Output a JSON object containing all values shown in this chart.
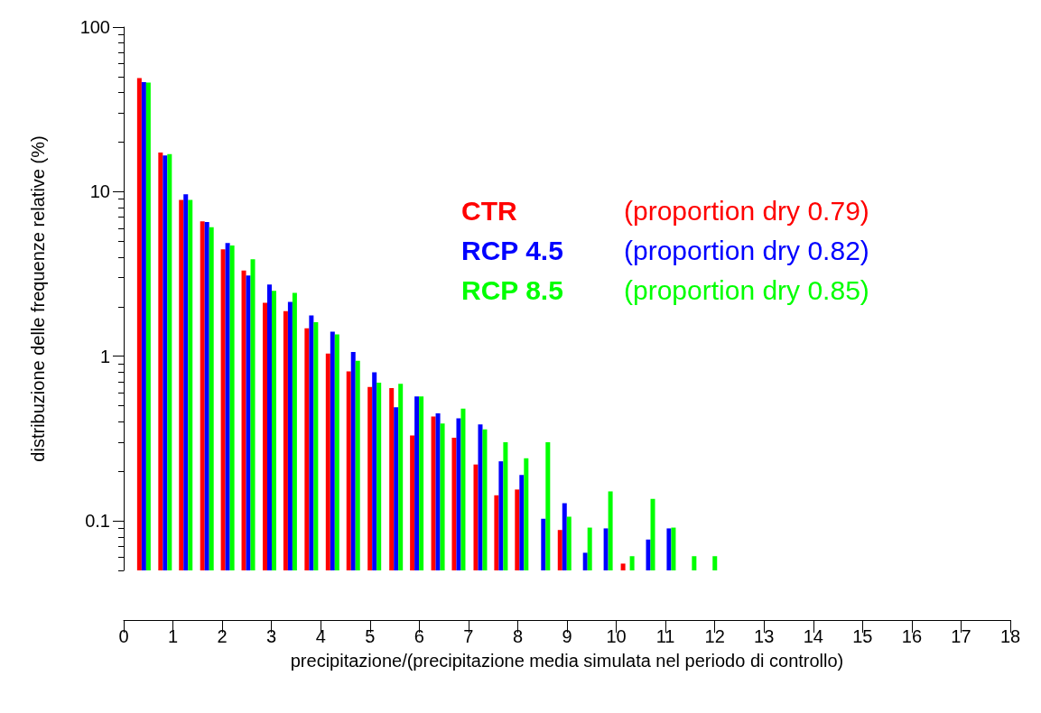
{
  "chart_data": {
    "type": "bar",
    "xlabel": "precipitazione/(precipitazione media simulata nel periodo di controllo)",
    "ylabel": "distribuzione delle frequenze relative (%)",
    "x": [
      0.41,
      0.84,
      1.26,
      1.69,
      2.11,
      2.53,
      2.96,
      3.38,
      3.81,
      4.24,
      4.66,
      5.09,
      5.53,
      5.95,
      6.38,
      6.8,
      7.24,
      7.66,
      8.08,
      8.52,
      8.95,
      9.37,
      9.79,
      10.23,
      10.65,
      11.07,
      11.49,
      11.91
    ],
    "series": [
      {
        "name": "CTR",
        "color": "#ff0000",
        "values": [
          49,
          17.3,
          8.9,
          6.6,
          4.46,
          3.32,
          2.11,
          1.88,
          1.48,
          1.04,
          0.81,
          0.65,
          0.64,
          0.33,
          0.43,
          0.32,
          0.22,
          0.143,
          0.155,
          null,
          0.088,
          null,
          null,
          0.055,
          null,
          null,
          null,
          null
        ]
      },
      {
        "name": "RCP 4.5",
        "color": "#0000ff",
        "values": [
          46.3,
          16.6,
          9.65,
          6.55,
          4.88,
          3.1,
          2.73,
          2.14,
          1.77,
          1.41,
          1.06,
          0.8,
          0.49,
          0.57,
          0.45,
          0.42,
          0.385,
          0.23,
          0.19,
          0.103,
          0.128,
          0.064,
          0.09,
          null,
          0.077,
          0.09,
          null,
          null
        ]
      },
      {
        "name": "RCP 8.5",
        "color": "#00ff00",
        "values": [
          46,
          16.9,
          8.9,
          6.08,
          4.71,
          3.89,
          2.5,
          2.43,
          1.61,
          1.36,
          0.94,
          0.69,
          0.68,
          0.57,
          0.39,
          0.48,
          0.36,
          0.3,
          0.24,
          0.3,
          0.106,
          0.091,
          0.151,
          0.061,
          0.136,
          0.091,
          0.061,
          0.061
        ]
      }
    ],
    "annotations": [
      "(proportion dry 0.79)",
      "(proportion dry 0.82)",
      "(proportion dry 0.85)"
    ],
    "log": "y",
    "ylim": [
      0.05,
      100
    ],
    "yticks": [
      0.1,
      1,
      10,
      100
    ],
    "xlim": [
      0,
      18
    ],
    "xticks": [
      0,
      1,
      2,
      3,
      4,
      5,
      6,
      7,
      8,
      9,
      10,
      11,
      12,
      13,
      14,
      15,
      16,
      17,
      18
    ],
    "grid": false
  }
}
